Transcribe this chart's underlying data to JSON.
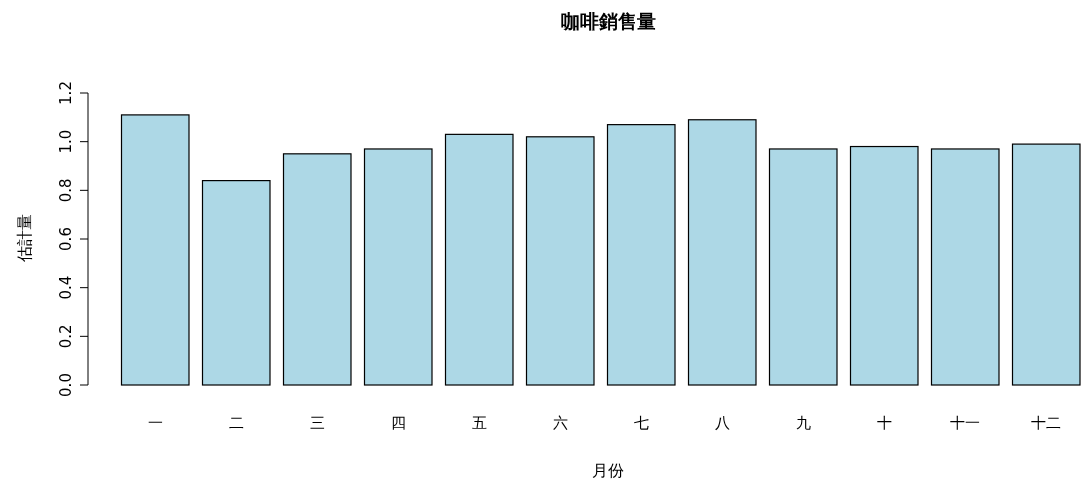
{
  "chart_data": {
    "type": "bar",
    "title": "咖啡銷售量",
    "xlabel": "月份",
    "ylabel": "估計量",
    "categories": [
      "一",
      "二",
      "三",
      "四",
      "五",
      "六",
      "七",
      "八",
      "九",
      "十",
      "十一",
      "十二"
    ],
    "values": [
      1.11,
      0.84,
      0.95,
      0.97,
      1.03,
      1.02,
      1.07,
      1.09,
      0.97,
      0.98,
      0.97,
      0.99
    ],
    "color": "#add8e6",
    "ylim": [
      0,
      1.2
    ],
    "yticks": [
      {
        "value": 0,
        "label": "0.0"
      },
      {
        "value": 0.2,
        "label": "0.2"
      },
      {
        "value": 0.4,
        "label": "0.4"
      },
      {
        "value": 0.6,
        "label": "0.6"
      },
      {
        "value": 0.8,
        "label": "0.8"
      },
      {
        "value": 1,
        "label": "1.0"
      },
      {
        "value": 1.2,
        "label": "1.2"
      }
    ]
  }
}
